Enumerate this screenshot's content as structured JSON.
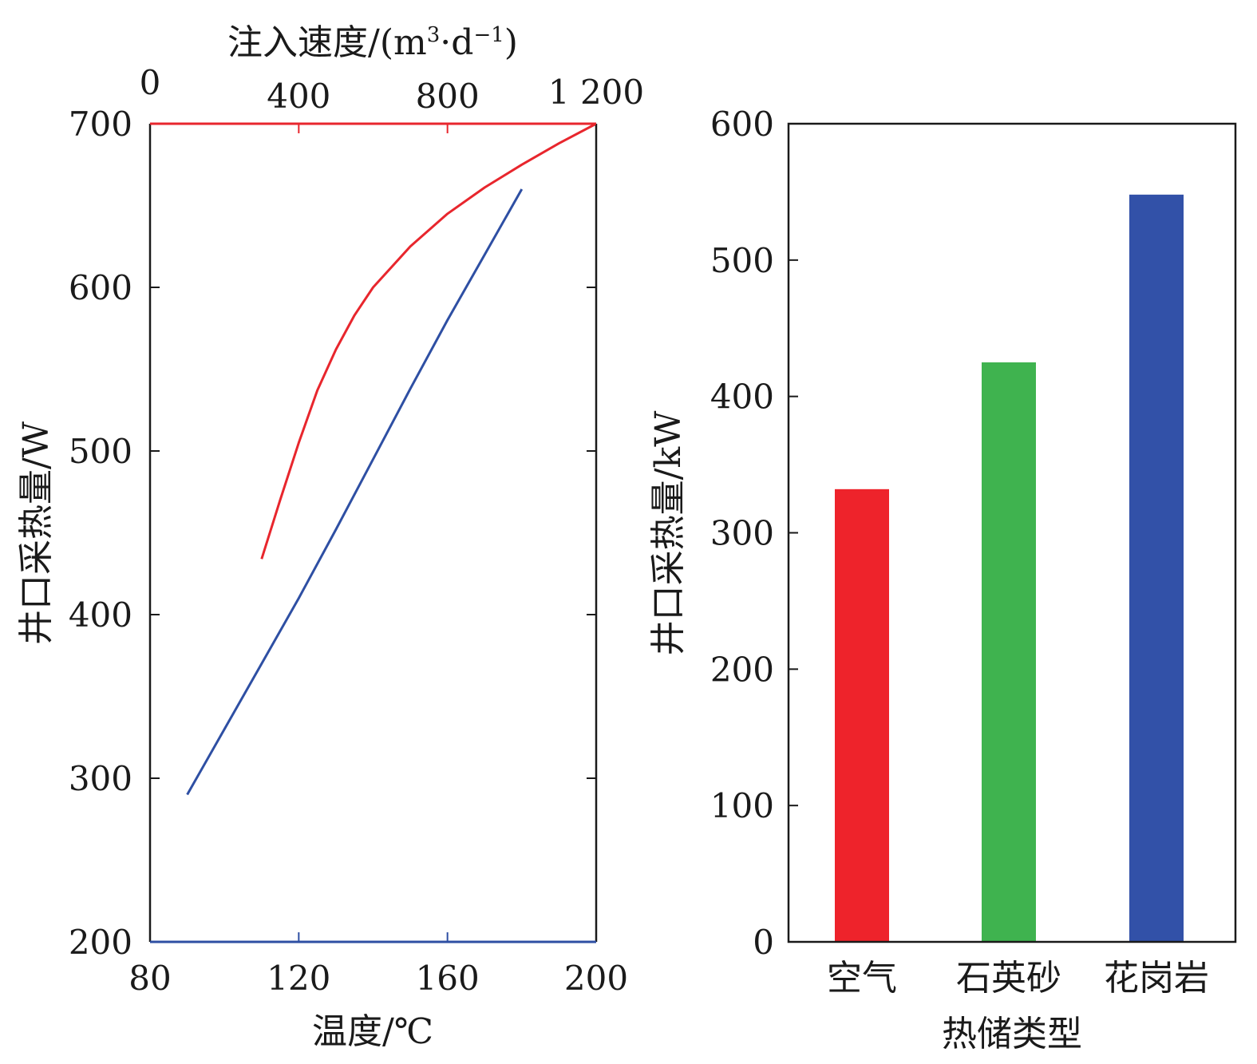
{
  "chart_data": [
    {
      "type": "line",
      "ylabel": "井口采热量/W",
      "ylim": [
        200,
        700
      ],
      "yticks": [
        "200",
        "300",
        "400",
        "500",
        "600",
        "700"
      ],
      "bottom_axis": {
        "label": "温度/℃",
        "lim": [
          80,
          200
        ],
        "ticks": [
          "80",
          "120",
          "160",
          "200"
        ],
        "color": "#2e4fa3"
      },
      "top_axis": {
        "label_main": "注入速度/(m",
        "label_sup1": "3",
        "label_mid": "·d",
        "label_sup2": "−1",
        "label_end": ")",
        "lim": [
          0,
          1200
        ],
        "ticks": [
          "0",
          "400",
          "800",
          "1 200"
        ],
        "color": "#e8262d"
      },
      "series": [
        {
          "axis": "bottom",
          "color": "#2e4fa3",
          "points": [
            [
              90,
              290
            ],
            [
              100,
              330
            ],
            [
              110,
              370
            ],
            [
              120,
              410
            ],
            [
              130,
              452
            ],
            [
              140,
              495
            ],
            [
              150,
              538
            ],
            [
              160,
              580
            ],
            [
              170,
              620
            ],
            [
              180,
              660
            ]
          ]
        },
        {
          "axis": "top",
          "color": "#e8262d",
          "points": [
            [
              300,
              434
            ],
            [
              350,
              470
            ],
            [
              400,
              505
            ],
            [
              450,
              537
            ],
            [
              500,
              562
            ],
            [
              550,
              583
            ],
            [
              600,
              600
            ],
            [
              700,
              625
            ],
            [
              800,
              645
            ],
            [
              900,
              661
            ],
            [
              1000,
              675
            ],
            [
              1100,
              688
            ],
            [
              1200,
              700
            ]
          ]
        }
      ]
    },
    {
      "type": "bar",
      "categories": [
        "空气",
        "石英砂",
        "花岗岩"
      ],
      "values": [
        332,
        425,
        548
      ],
      "colors": [
        "#ee232b",
        "#3fb34f",
        "#3251a8"
      ],
      "xlabel": "热储类型",
      "ylabel": "井口采热量/kW",
      "ylim": [
        0,
        600
      ],
      "yticks": [
        "0",
        "100",
        "200",
        "300",
        "400",
        "500",
        "600"
      ]
    }
  ]
}
